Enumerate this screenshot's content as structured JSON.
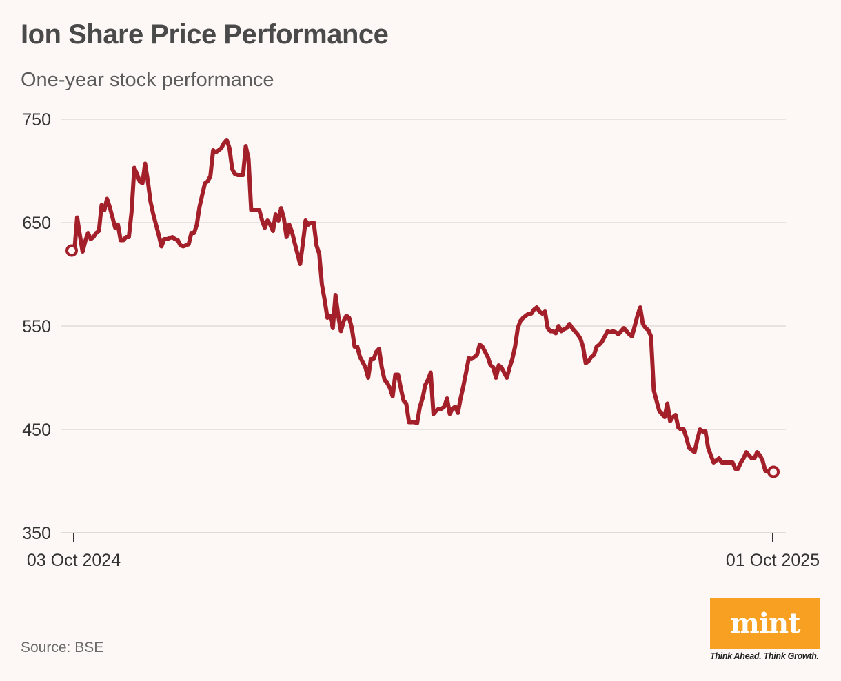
{
  "header": {
    "title": "Ion Share Price Performance",
    "subtitle": "One-year stock performance"
  },
  "footer": {
    "source": "Source: BSE",
    "logo_text": "mint",
    "tagline": "Think Ahead. Think Growth."
  },
  "colors": {
    "line": "#a3202a",
    "grid": "#e2dcda",
    "axis_text": "#333333",
    "logo_bg": "#f7a021"
  },
  "chart_data": {
    "type": "line",
    "title": "Ion Share Price Performance",
    "subtitle": "One-year stock performance",
    "xlabel": "",
    "ylabel": "",
    "ylim": [
      350,
      750
    ],
    "yticks": [
      750,
      650,
      550,
      450,
      350
    ],
    "grid": true,
    "xtick_labels": [
      "03 Oct 2024",
      "01 Oct 2025"
    ],
    "x_start": "03 Oct 2024",
    "x_end": "01 Oct 2025",
    "markers": "first-and-last",
    "series": [
      {
        "name": "",
        "values": [
          623,
          622,
          655,
          638,
          622,
          632,
          640,
          634,
          636,
          640,
          642,
          667,
          662,
          673,
          665,
          655,
          645,
          648,
          633,
          633,
          636,
          636,
          660,
          703,
          697,
          690,
          688,
          707,
          690,
          670,
          658,
          648,
          638,
          627,
          634,
          634,
          635,
          636,
          634,
          633,
          628,
          627,
          628,
          629,
          640,
          640,
          648,
          665,
          677,
          688,
          690,
          695,
          720,
          718,
          720,
          722,
          727,
          730,
          722,
          702,
          697,
          696,
          696,
          696,
          724,
          712,
          662,
          662,
          662,
          662,
          652,
          645,
          652,
          648,
          642,
          658,
          652,
          664,
          654,
          636,
          648,
          641,
          630,
          620,
          610,
          630,
          652,
          648,
          650,
          650,
          628,
          620,
          590,
          575,
          558,
          560,
          548,
          580,
          560,
          545,
          555,
          560,
          558,
          548,
          530,
          530,
          520,
          515,
          510,
          500,
          518,
          518,
          525,
          528,
          510,
          498,
          495,
          490,
          482,
          503,
          503,
          490,
          478,
          475,
          457,
          457,
          457,
          456,
          472,
          480,
          493,
          498,
          505,
          465,
          468,
          470,
          470,
          472,
          480,
          465,
          470,
          472,
          466,
          480,
          492,
          505,
          519,
          518,
          520,
          522,
          532,
          530,
          525,
          520,
          512,
          510,
          500,
          512,
          510,
          505,
          500,
          510,
          518,
          530,
          548,
          555,
          558,
          560,
          562,
          562,
          566,
          568,
          564,
          562,
          564,
          548,
          545,
          545,
          543,
          550,
          545,
          547,
          548,
          552,
          548,
          545,
          542,
          538,
          530,
          514,
          516,
          520,
          522,
          530,
          532,
          535,
          540,
          545,
          544,
          545,
          544,
          542,
          545,
          548,
          545,
          542,
          540,
          550,
          560,
          568,
          552,
          548,
          546,
          540,
          488,
          478,
          468,
          465,
          462,
          475,
          458,
          462,
          464,
          452,
          450,
          450,
          442,
          432,
          430,
          428,
          440,
          450,
          448,
          448,
          432,
          425,
          418,
          420,
          422,
          418,
          418,
          418,
          418,
          418,
          412,
          412,
          418,
          422,
          428,
          425,
          422,
          422,
          428,
          425,
          420,
          410,
          410,
          409,
          409
        ]
      }
    ]
  }
}
